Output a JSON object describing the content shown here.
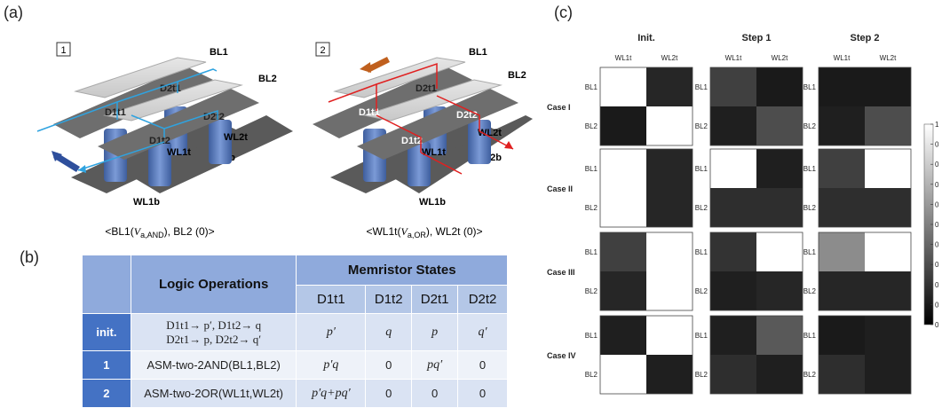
{
  "panel_labels": {
    "a": "(a)",
    "b": "(b)",
    "c": "(c)"
  },
  "panel_a": {
    "steps": [
      "1",
      "2"
    ],
    "electrodes": [
      "BL1",
      "BL2",
      "WL1t",
      "WL2t",
      "WL1b",
      "WL2b"
    ],
    "devices": [
      "D1t1",
      "D2t1",
      "D1t2",
      "D2t2"
    ],
    "caption_left": "<BL1(Va,AND), BL2 (0)>",
    "caption_right": "<WL1t(Va,OR), WL2t (0)>"
  },
  "panel_b": {
    "header_ops": "Logic Operations",
    "header_states": "Memristor States",
    "columns": [
      "D1t1",
      "D1t2",
      "D2t1",
      "D2t2"
    ],
    "rows": [
      {
        "label": "init.",
        "op_line1": "D1t1→ p′, D1t2→ q",
        "op_line2": "D2t1→ p, D2t2→ q′",
        "values": [
          "p′",
          "q",
          "p",
          "q′"
        ]
      },
      {
        "label": "1",
        "op": "ASM-two-2AND(BL1,BL2)",
        "values": [
          "p′q",
          "0",
          "pq′",
          "0"
        ]
      },
      {
        "label": "2",
        "op": "ASM-two-2OR(WL1t,WL2t)",
        "values": [
          "p′q+pq′",
          "0",
          "0",
          "0"
        ]
      }
    ]
  },
  "chart_data": {
    "type": "heatmap",
    "column_titles": [
      "Init.",
      "Step 1",
      "Step 2"
    ],
    "xticks": [
      "WL1t",
      "WL2t"
    ],
    "yticks": [
      "BL1",
      "BL2"
    ],
    "row_titles": [
      "Case I",
      "Case II",
      "Case III",
      "Case IV"
    ],
    "colorbar_range": [
      0,
      1
    ],
    "colorbar_labels": [
      "1",
      "0",
      "0",
      "0",
      "0",
      "0",
      "0",
      "0",
      "0",
      "0",
      "0"
    ],
    "cases": [
      {
        "name": "Case I",
        "init": [
          [
            1.0,
            0.15
          ],
          [
            0.1,
            1.0
          ]
        ],
        "step1": [
          [
            0.25,
            0.1
          ],
          [
            0.12,
            0.3
          ]
        ],
        "step2": [
          [
            0.1,
            0.1
          ],
          [
            0.12,
            0.3
          ]
        ]
      },
      {
        "name": "Case II",
        "init": [
          [
            1.0,
            0.15
          ],
          [
            1.0,
            0.15
          ]
        ],
        "step1": [
          [
            1.0,
            0.12
          ],
          [
            0.18,
            0.18
          ]
        ],
        "step2": [
          [
            0.25,
            1.0
          ],
          [
            0.18,
            0.18
          ]
        ]
      },
      {
        "name": "Case III",
        "init": [
          [
            0.25,
            1.0
          ],
          [
            0.15,
            1.0
          ]
        ],
        "step1": [
          [
            0.2,
            1.0
          ],
          [
            0.12,
            0.15
          ]
        ],
        "step2": [
          [
            0.55,
            1.0
          ],
          [
            0.15,
            0.15
          ]
        ]
      },
      {
        "name": "Case IV",
        "init": [
          [
            0.12,
            1.0
          ],
          [
            1.0,
            0.12
          ]
        ],
        "step1": [
          [
            0.12,
            0.35
          ],
          [
            0.18,
            0.12
          ]
        ],
        "step2": [
          [
            0.1,
            0.12
          ],
          [
            0.18,
            0.12
          ]
        ]
      }
    ]
  }
}
